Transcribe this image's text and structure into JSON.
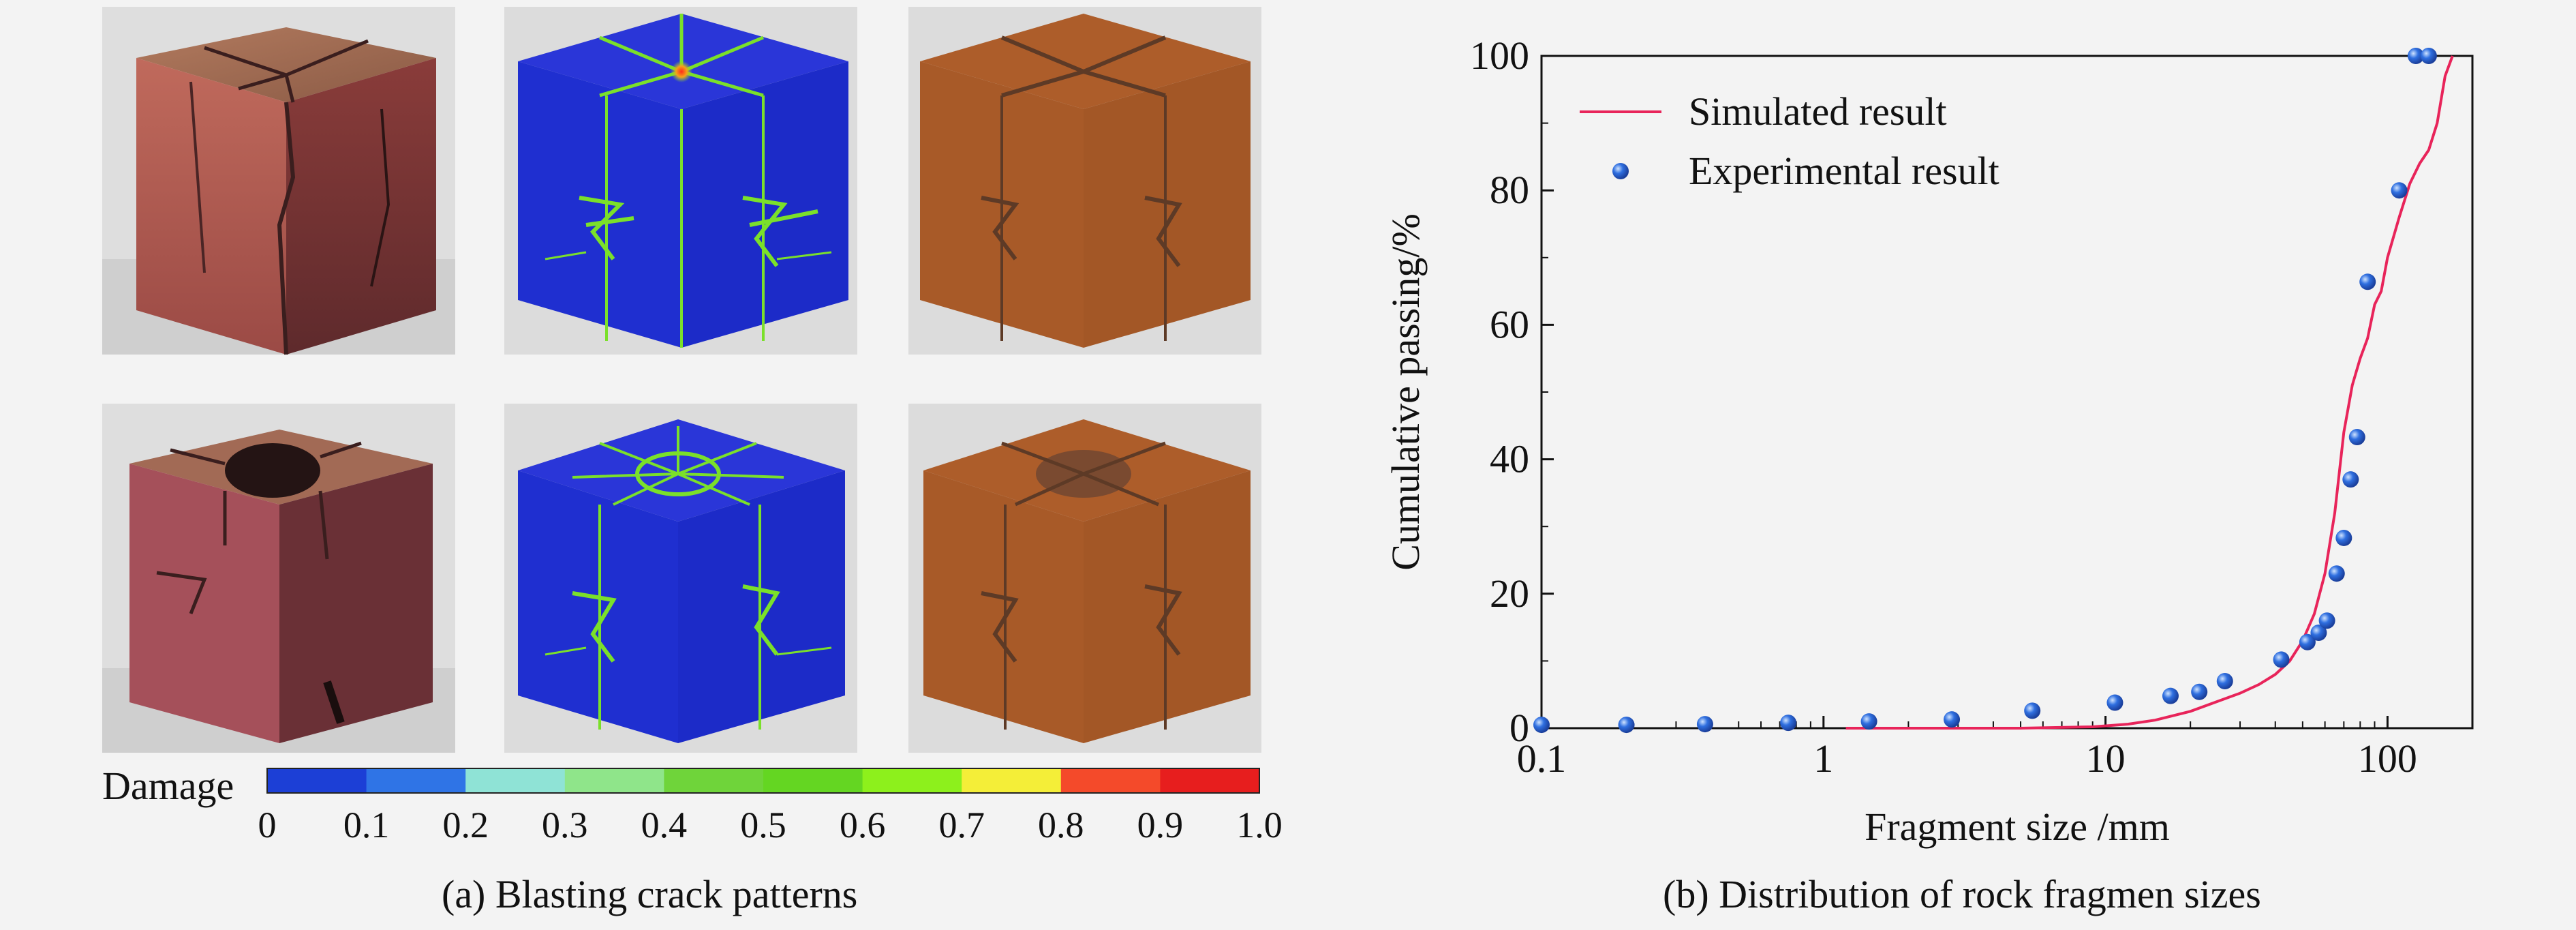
{
  "panel_a": {
    "caption": "(a) Blasting crack patterns",
    "damage_label": "Damage",
    "colorbar_ticks": [
      "0",
      "0.1",
      "0.2",
      "0.3",
      "0.4",
      "0.5",
      "0.6",
      "0.7",
      "0.8",
      "0.9",
      "1.0"
    ],
    "colorbar_colors": [
      "#1c3fd6",
      "#2f74e6",
      "#8fe3d6",
      "#8fe58a",
      "#6fd43a",
      "#64d622",
      "#8df01c",
      "#f4ee38",
      "#f44a2a",
      "#e71e1e"
    ],
    "colors": {
      "rock_photo": "#a85c52",
      "sim_blue": "#1f2fd0",
      "sim_crack_green": "#7be02a",
      "sim_orange": "#a85a28"
    }
  },
  "panel_b": {
    "caption": "(b) Distribution of rock fragmen sizes",
    "chart_data": {
      "type": "scatter",
      "xlabel": "Fragment size /mm",
      "ylabel": "Cumulative passing/%",
      "xscale": "log",
      "xlim": [
        0.1,
        200
      ],
      "ylim": [
        0,
        100
      ],
      "x_ticks": [
        0.1,
        1,
        10,
        100
      ],
      "x_tick_labels": [
        "0.1",
        "1",
        "10",
        "100"
      ],
      "y_ticks": [
        0,
        20,
        40,
        60,
        80,
        100
      ],
      "y_tick_labels": [
        "0",
        "20",
        "40",
        "60",
        "80",
        "100"
      ],
      "grid": false,
      "legend_position": "top-left",
      "series": [
        {
          "name": "Simulated result",
          "kind": "line",
          "color": "#e8245a",
          "x": [
            1.2,
            5,
            9,
            12,
            15,
            20,
            25,
            30,
            35,
            40,
            45,
            50,
            55,
            60,
            65,
            70,
            75,
            80,
            85,
            90,
            95,
            100,
            110,
            120,
            130,
            140,
            150,
            160,
            170
          ],
          "y": [
            0,
            0,
            0.2,
            0.6,
            1.2,
            2.5,
            4,
            5.2,
            6.5,
            8,
            10,
            13,
            17,
            23,
            32,
            44,
            51,
            55,
            58,
            63,
            65,
            70,
            76,
            81,
            84,
            86,
            90,
            97,
            100
          ]
        },
        {
          "name": "Experimental result",
          "kind": "markers",
          "color": "#2f6fe0",
          "x": [
            0.1,
            0.2,
            0.38,
            0.75,
            1.45,
            2.85,
            5.5,
            10.8,
            17,
            21.5,
            26.5,
            42,
            52,
            57,
            61,
            66,
            70,
            74,
            78,
            85,
            110,
            126,
            140
          ],
          "y": [
            0.5,
            0.5,
            0.6,
            0.8,
            1,
            1.3,
            2.6,
            3.8,
            4.8,
            5.4,
            7,
            10.2,
            12.8,
            14.2,
            16,
            23,
            28.3,
            37,
            43.3,
            66.4,
            80,
            100,
            100
          ]
        }
      ]
    }
  }
}
